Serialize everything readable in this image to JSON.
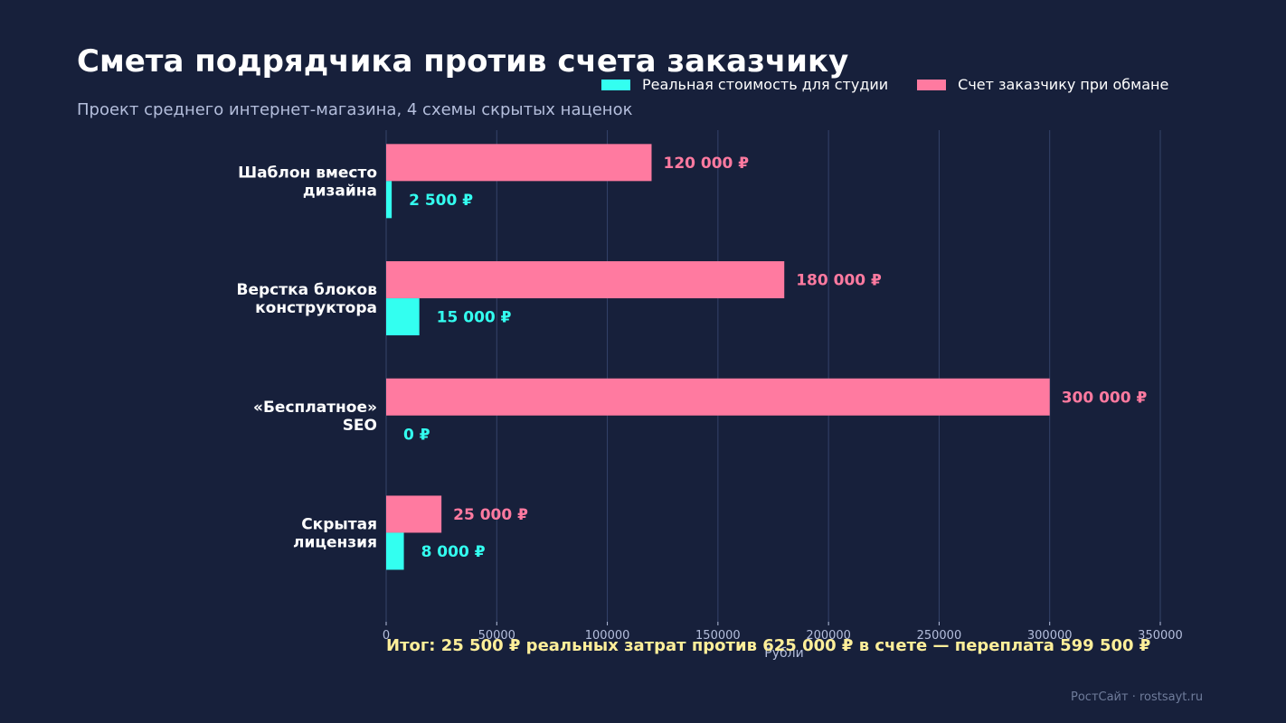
{
  "page": {
    "title": "Смета подрядчика против счета заказчику",
    "subtitle": "Проект среднего интернет-магазина, 4 схемы скрытых наценок",
    "footer": "РостСайт · rostsayt.ru"
  },
  "colors": {
    "background": "#17203b",
    "real": "#33fff0",
    "invoice": "#ff7aa0",
    "summary": "#ffef9a",
    "grid": "#35436a"
  },
  "chart_data": {
    "type": "bar",
    "orientation": "horizontal",
    "categories": [
      [
        "Шаблон вместо",
        "дизайна"
      ],
      [
        "Верстка блоков",
        "конструктора"
      ],
      [
        "«Бесплатное»",
        "SEO"
      ],
      [
        "Скрытая",
        "лицензия"
      ]
    ],
    "series": [
      {
        "name": "Счет заказчику при обмане",
        "key": "invoice",
        "values": [
          120000,
          180000,
          300000,
          25000
        ],
        "labels": [
          "120 000 ₽",
          "180 000 ₽",
          "300 000 ₽",
          "25 000 ₽"
        ]
      },
      {
        "name": "Реальная стоимость для студии",
        "key": "real",
        "values": [
          2500,
          15000,
          0,
          8000
        ],
        "labels": [
          "2 500 ₽",
          "15 000 ₽",
          "0 ₽",
          "8 000 ₽"
        ]
      }
    ],
    "legend_order": [
      "real",
      "invoice"
    ],
    "legend_position": "top-right",
    "xlabel": "Рубли",
    "xlim": [
      0,
      350000
    ],
    "xticks": [
      0,
      50000,
      100000,
      150000,
      200000,
      250000,
      300000,
      350000
    ],
    "grid": "vertical",
    "annotation": "Итог: 25 500 ₽ реальных затрат против 625 000 ₽ в счете — переплата 599 500 ₽"
  }
}
